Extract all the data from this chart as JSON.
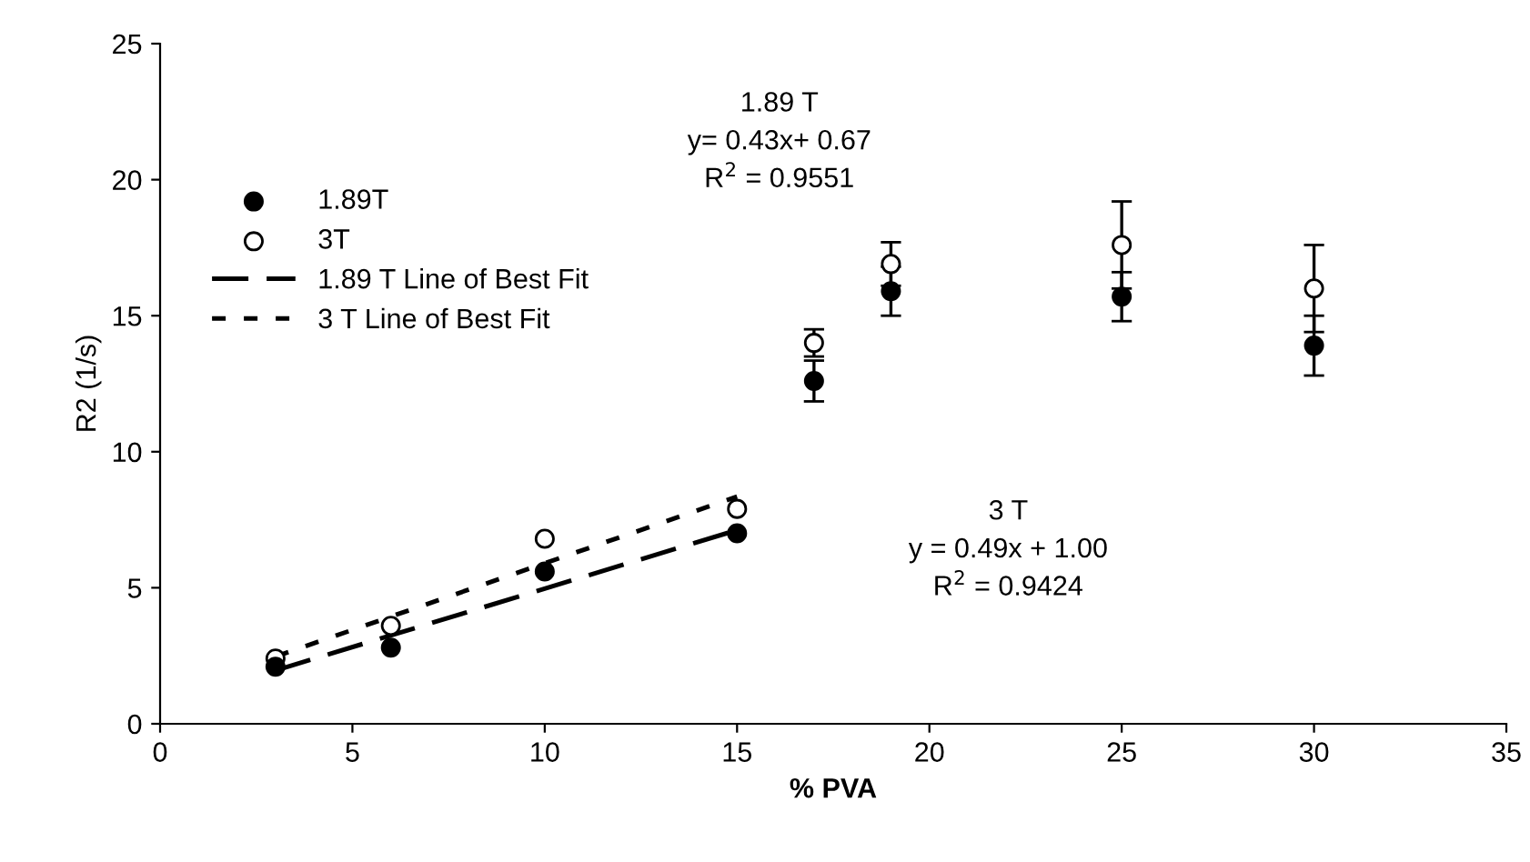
{
  "chart_data": {
    "type": "scatter",
    "xlabel": "% PVA",
    "ylabel": "R2 (1/s)",
    "xlim": [
      0,
      35
    ],
    "ylim": [
      0,
      25
    ],
    "xticks": [
      0,
      5,
      10,
      15,
      20,
      25,
      30,
      35
    ],
    "yticks": [
      0,
      5,
      10,
      15,
      20,
      25
    ],
    "grid": false,
    "legend": "left",
    "series": [
      {
        "name": "1.89T",
        "marker": "circle",
        "color": "#000000",
        "x": [
          3,
          6,
          10,
          15,
          17,
          19,
          25,
          30
        ],
        "values": [
          2.1,
          2.8,
          5.6,
          7.0,
          12.6,
          15.9,
          15.7,
          13.9
        ],
        "errors": [
          null,
          null,
          null,
          null,
          0.75,
          0.9,
          0.9,
          1.1
        ]
      },
      {
        "name": "3T",
        "marker": "circle",
        "color": "#ffffff",
        "x": [
          3,
          6,
          10,
          15,
          17,
          19,
          25,
          30
        ],
        "values": [
          2.4,
          3.6,
          6.8,
          7.9,
          14.0,
          16.9,
          17.6,
          16.0
        ],
        "errors": [
          null,
          null,
          null,
          null,
          0.5,
          0.8,
          1.6,
          1.6
        ]
      },
      {
        "name": "1.89 T Line of Best Fit",
        "type": "line",
        "line_style": "dashed",
        "color": "#000000",
        "x": [
          3,
          15
        ],
        "values": [
          1.96,
          7.12
        ]
      },
      {
        "name": "3 T Line of Best Fit",
        "type": "line",
        "line_style": "dotted",
        "color": "#000000",
        "x": [
          3,
          15
        ],
        "values": [
          2.47,
          8.35
        ]
      }
    ],
    "annotations": [
      "1.89 T\ny= 0.43x+ 0.67\nR$^{2}$ = 0.9551",
      "3 T\ny = 0.49x + 1.00\nR$^{2}$ = 0.9424"
    ]
  }
}
